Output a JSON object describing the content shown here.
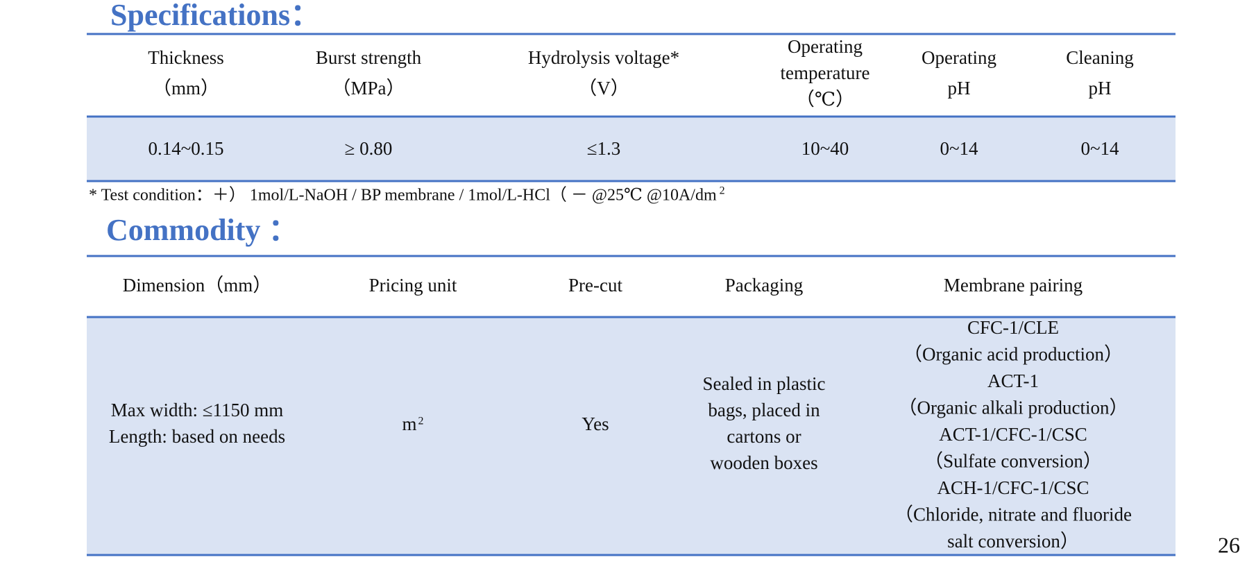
{
  "specifications": {
    "title": "Specifications：",
    "headers": [
      [
        "Thickness",
        "（mm）"
      ],
      [
        "Burst strength",
        "（MPa）"
      ],
      [
        "Hydrolysis voltage*",
        "（V）"
      ],
      [
        "Operating",
        "temperature",
        "（℃）"
      ],
      [
        "Operating",
        "pH"
      ],
      [
        "Cleaning",
        "pH"
      ]
    ],
    "row": [
      "0.14~0.15",
      "≥ 0.80",
      "≤1.3",
      "10~40",
      "0~14",
      "0~14"
    ]
  },
  "note": {
    "text": "*   Test condition：＋）  1mol/L-NaOH  /  BP membrane /  1mol/L-HCl（ －  @25℃    @10A/dm",
    "superscript": "2"
  },
  "commodity": {
    "title": "Commodity ：",
    "headers": [
      "Dimension（mm）",
      "Pricing unit",
      "Pre-cut",
      "Packaging",
      "Membrane pairing"
    ],
    "row": {
      "dimension": [
        "Max width: ≤1150 mm",
        "Length: based on needs"
      ],
      "pricing_unit": {
        "text": "m",
        "superscript": "2"
      },
      "pre_cut": "Yes",
      "packaging": [
        "Sealed in plastic",
        "bags, placed in",
        "cartons or",
        "wooden boxes"
      ],
      "membrane_pairing": [
        "CFC-1/CLE",
        "（Organic acid production）",
        "ACT-1",
        "（Organic alkali production）",
        "ACT-1/CFC-1/CSC",
        "（Sulfate conversion）",
        "ACH-1/CFC-1/CSC",
        "（Chloride, nitrate and fluoride",
        "salt conversion）"
      ]
    }
  },
  "page_number": "26"
}
